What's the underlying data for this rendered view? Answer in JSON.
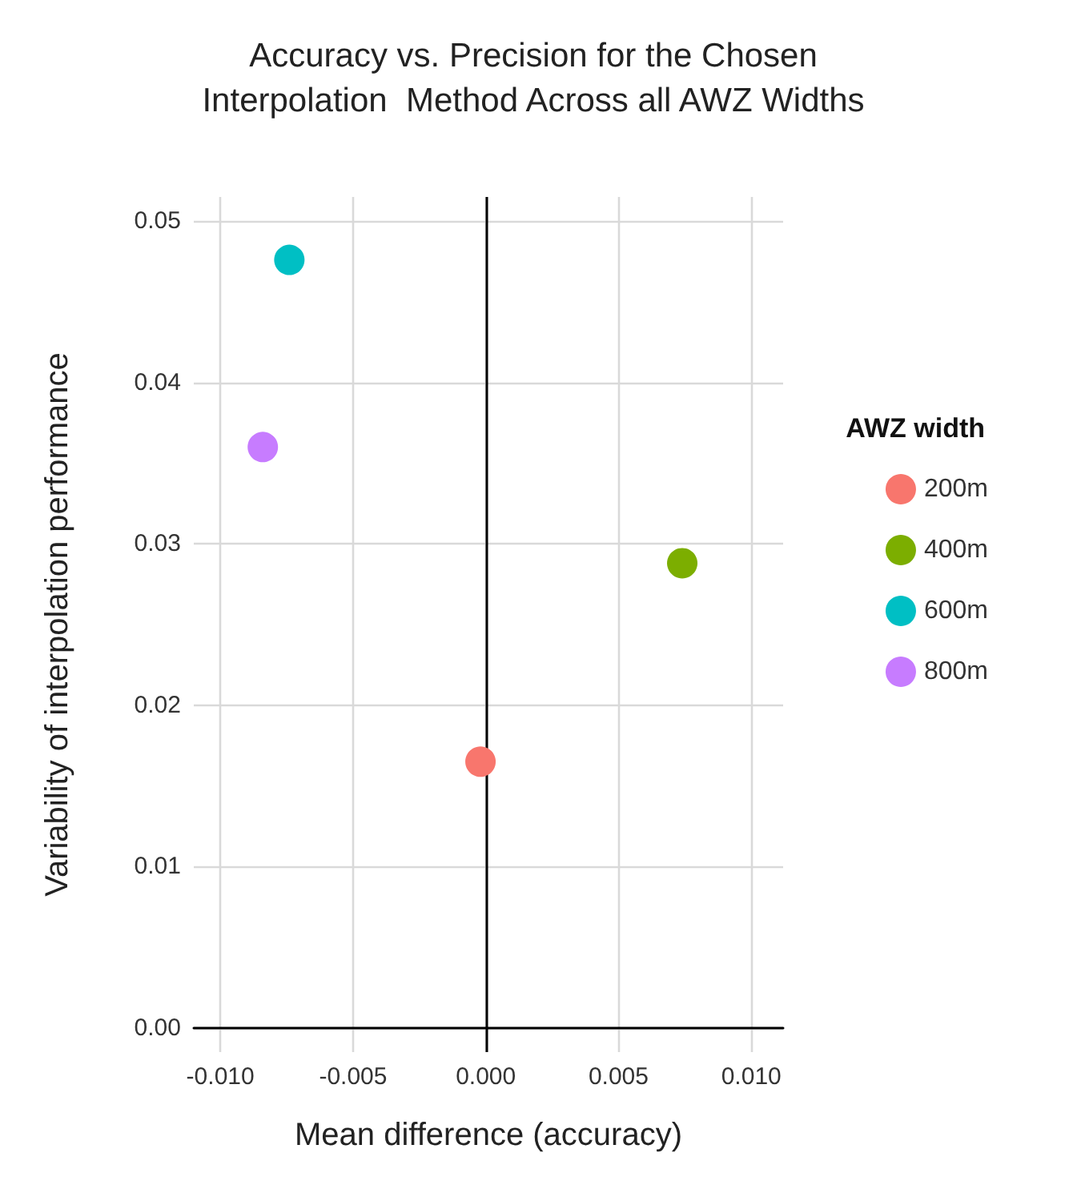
{
  "chart_data": {
    "type": "scatter",
    "title": "Accuracy vs. Precision for the Chosen\nInterpolation  Method Across all AWZ Widths",
    "xlabel": "Mean difference (accuracy)",
    "ylabel": "Variability of interpolation performance",
    "legend_title": "AWZ width",
    "series": [
      {
        "name": "200m",
        "color": "#f8766d",
        "x": [
          -0.0002
        ],
        "values": [
          0.0165
        ]
      },
      {
        "name": "400m",
        "color": "#7cae00",
        "x": [
          0.0074
        ],
        "values": [
          0.0288
        ]
      },
      {
        "name": "600m",
        "color": "#00bfc4",
        "x": [
          -0.0074
        ],
        "values": [
          0.0476
        ]
      },
      {
        "name": "800m",
        "color": "#c77cff",
        "x": [
          -0.0084
        ],
        "values": [
          0.036
        ]
      }
    ],
    "xlim": [
      -0.011,
      0.0112
    ],
    "ylim": [
      -0.0015,
      0.0515
    ],
    "xticks": [
      {
        "value": -0.01,
        "label": "-0.010"
      },
      {
        "value": -0.005,
        "label": "-0.005"
      },
      {
        "value": 0,
        "label": "0.000"
      },
      {
        "value": 0.005,
        "label": "0.005"
      },
      {
        "value": 0.01,
        "label": "0.010"
      }
    ],
    "yticks": [
      {
        "value": 0,
        "label": "0.00"
      },
      {
        "value": 0.01,
        "label": "0.01"
      },
      {
        "value": 0.02,
        "label": "0.02"
      },
      {
        "value": 0.03,
        "label": "0.03"
      },
      {
        "value": 0.04,
        "label": "0.04"
      },
      {
        "value": 0.05,
        "label": "0.05"
      }
    ],
    "ref_lines": [
      {
        "axis": "x",
        "value": 0,
        "color": "#000000"
      }
    ],
    "grid": true,
    "legend": "right",
    "marker": "circle"
  }
}
